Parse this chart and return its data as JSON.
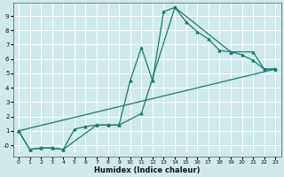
{
  "title": "",
  "xlabel": "Humidex (Indice chaleur)",
  "ylabel": "",
  "bg_color": "#ceeaea",
  "grid_color": "#b8d8d8",
  "line_color": "#1a7a6e",
  "line1_x": [
    0,
    1,
    2,
    3,
    4,
    5,
    6,
    7,
    8,
    9,
    10,
    11,
    12,
    13,
    14,
    15,
    16,
    17,
    18,
    19,
    20,
    21,
    22,
    23
  ],
  "line1_y": [
    1.0,
    -0.3,
    -0.2,
    -0.2,
    -0.3,
    1.1,
    1.3,
    1.4,
    1.4,
    1.4,
    4.5,
    6.8,
    4.5,
    9.3,
    9.6,
    8.6,
    7.9,
    7.4,
    6.6,
    6.5,
    6.3,
    5.9,
    5.3,
    5.3
  ],
  "line2_x": [
    0,
    1,
    2,
    3,
    4,
    7,
    8,
    9,
    11,
    14,
    19,
    21,
    22,
    23
  ],
  "line2_y": [
    1.0,
    -0.3,
    -0.2,
    -0.2,
    -0.3,
    1.4,
    1.4,
    1.4,
    2.2,
    9.6,
    6.5,
    6.5,
    5.3,
    5.3
  ],
  "line3_x": [
    0,
    23
  ],
  "line3_y": [
    1.0,
    5.3
  ],
  "xlim": [
    -0.5,
    23.5
  ],
  "ylim": [
    -0.8,
    9.9
  ],
  "xticks": [
    0,
    1,
    2,
    3,
    4,
    5,
    6,
    7,
    8,
    9,
    10,
    11,
    12,
    13,
    14,
    15,
    16,
    17,
    18,
    19,
    20,
    21,
    22,
    23
  ],
  "yticks": [
    0,
    1,
    2,
    3,
    4,
    5,
    6,
    7,
    8,
    9
  ]
}
